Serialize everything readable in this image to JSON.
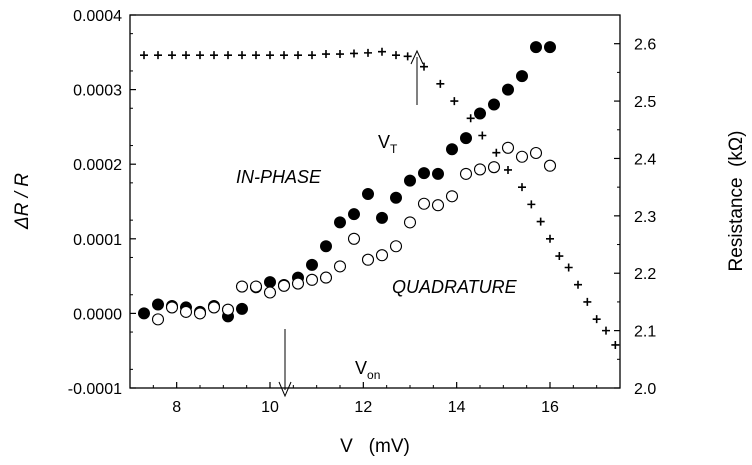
{
  "chart_data": {
    "type": "scatter",
    "xlabel": "V   (mV)",
    "ylabel_left": "ΔR / R",
    "ylabel_right": "Resistance  (kΩ)",
    "xlim": [
      7,
      17.5
    ],
    "ylim_left": [
      -0.0001,
      0.0004
    ],
    "ylim_right": [
      2.0,
      2.65
    ],
    "x_ticks": [
      8,
      10,
      12,
      14,
      16
    ],
    "y_left_ticks": [
      "-0.0001",
      "0.0000",
      "0.0001",
      "0.0002",
      "0.0003",
      "0.0004"
    ],
    "y_right_ticks": [
      "2.0",
      "2.1",
      "2.2",
      "2.3",
      "2.4",
      "2.5",
      "2.6"
    ],
    "grid": false,
    "series": [
      {
        "name": "IN-PHASE",
        "axis": "left",
        "marker": "filled-circle",
        "x": [
          7.3,
          7.6,
          7.9,
          8.2,
          8.5,
          8.8,
          9.1,
          9.4,
          9.7,
          10.0,
          10.3,
          10.6,
          10.9,
          11.2,
          11.5,
          11.8,
          12.1,
          12.4,
          12.7,
          13.0,
          13.3,
          13.6,
          13.9,
          14.2,
          14.5,
          14.8,
          15.1,
          15.4,
          15.7,
          16.0
        ],
        "values": [
          0.0,
          1.2e-05,
          1e-05,
          8e-06,
          2e-06,
          1e-05,
          -4e-06,
          6e-06,
          3.5e-05,
          4.2e-05,
          3.8e-05,
          4.8e-05,
          6.5e-05,
          9e-05,
          0.000122,
          0.000133,
          0.00016,
          0.000128,
          0.000155,
          0.000178,
          0.000188,
          0.000187,
          0.00022,
          0.000235,
          0.000268,
          0.00028,
          0.0003,
          0.000318,
          0.000357,
          0.000357
        ]
      },
      {
        "name": "QUADRATURE",
        "axis": "left",
        "marker": "open-circle",
        "x": [
          7.6,
          7.9,
          8.2,
          8.5,
          8.8,
          9.1,
          9.4,
          9.7,
          10.0,
          10.3,
          10.6,
          10.9,
          11.2,
          11.5,
          11.8,
          12.1,
          12.4,
          12.7,
          13.0,
          13.3,
          13.6,
          13.9,
          14.2,
          14.5,
          14.8,
          15.1,
          15.4,
          15.7,
          16.0
        ],
        "values": [
          -8e-06,
          8e-06,
          2e-06,
          0.0,
          8e-06,
          5e-06,
          3.6e-05,
          3.6e-05,
          2.8e-05,
          3.7e-05,
          4e-05,
          4.5e-05,
          4.8e-05,
          6.3e-05,
          0.0001,
          7.2e-05,
          7.8e-05,
          9e-05,
          0.000122,
          0.000147,
          0.000145,
          0.000157,
          0.000187,
          0.000193,
          0.000196,
          0.000222,
          0.00021,
          0.000215,
          0.000198
        ]
      },
      {
        "name": "Resistance",
        "axis": "right",
        "marker": "plus",
        "x": [
          7.3,
          7.6,
          7.9,
          8.2,
          8.5,
          8.8,
          9.1,
          9.4,
          9.7,
          10.0,
          10.3,
          10.6,
          10.9,
          11.2,
          11.5,
          11.8,
          12.1,
          12.4,
          12.7,
          12.95,
          13.3,
          13.65,
          13.95,
          14.3,
          14.55,
          14.85,
          15.1,
          15.4,
          15.6,
          15.8,
          16.0,
          16.2,
          16.4,
          16.6,
          16.8,
          17.0,
          17.2,
          17.4
        ],
        "values": [
          2.58,
          2.58,
          2.58,
          2.58,
          2.58,
          2.58,
          2.58,
          2.58,
          2.58,
          2.58,
          2.58,
          2.58,
          2.58,
          2.582,
          2.582,
          2.583,
          2.584,
          2.586,
          2.58,
          2.578,
          2.56,
          2.53,
          2.5,
          2.47,
          2.44,
          2.41,
          2.38,
          2.35,
          2.32,
          2.29,
          2.26,
          2.23,
          2.21,
          2.18,
          2.15,
          2.12,
          2.1,
          2.075
        ]
      }
    ],
    "annotations": {
      "von_label": "V",
      "von_sub": "on",
      "vt_label": "V",
      "vt_sub": "T",
      "inphase_label": "IN-PHASE",
      "quadrature_label": "QUADRATURE"
    }
  }
}
